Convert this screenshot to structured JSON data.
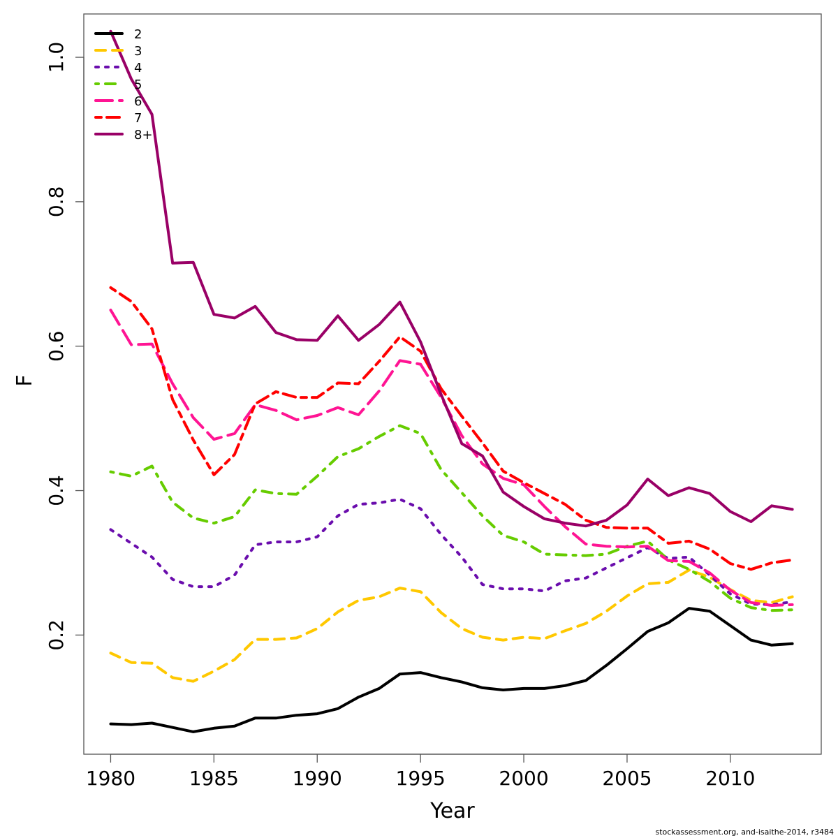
{
  "chart_data": {
    "type": "line",
    "title": "",
    "xlabel": "Year",
    "ylabel": "F",
    "xlim": [
      1978.7,
      2014.4
    ],
    "ylim": [
      0.035,
      1.06
    ],
    "x_ticks": [
      1980,
      1985,
      1990,
      1995,
      2000,
      2005,
      2010
    ],
    "x_tick_labels": [
      "1980",
      "1985",
      "1990",
      "1995",
      "2000",
      "2005",
      "2010"
    ],
    "y_ticks": [
      0.2,
      0.4,
      0.6,
      0.8,
      1.0
    ],
    "y_tick_labels": [
      "0.2",
      "0.4",
      "0.6",
      "0.8",
      "1.0"
    ],
    "grid": false,
    "legend_position": "top-left",
    "x": [
      1980,
      1981,
      1982,
      1983,
      1984,
      1985,
      1986,
      1987,
      1988,
      1989,
      1990,
      1991,
      1992,
      1993,
      1994,
      1995,
      1996,
      1997,
      1998,
      1999,
      2000,
      2001,
      2002,
      2003,
      2004,
      2005,
      2006,
      2007,
      2008,
      2009,
      2010,
      2011,
      2012,
      2013
    ],
    "series": [
      {
        "name": "2",
        "color": "#000000",
        "dash": "solid",
        "values": [
          0.077,
          0.076,
          0.078,
          0.072,
          0.066,
          0.071,
          0.074,
          0.085,
          0.085,
          0.089,
          0.091,
          0.098,
          0.114,
          0.126,
          0.146,
          0.148,
          0.141,
          0.135,
          0.127,
          0.124,
          0.126,
          0.126,
          0.13,
          0.137,
          0.158,
          0.181,
          0.205,
          0.217,
          0.237,
          0.233,
          0.213,
          0.193,
          0.186,
          0.188
        ]
      },
      {
        "name": "3",
        "color": "#FFC800",
        "dash": "dashed",
        "values": [
          0.175,
          0.162,
          0.161,
          0.141,
          0.136,
          0.15,
          0.166,
          0.194,
          0.194,
          0.196,
          0.209,
          0.232,
          0.248,
          0.253,
          0.265,
          0.26,
          0.231,
          0.209,
          0.197,
          0.193,
          0.197,
          0.195,
          0.206,
          0.216,
          0.233,
          0.254,
          0.271,
          0.273,
          0.29,
          0.28,
          0.263,
          0.248,
          0.245,
          0.253
        ]
      },
      {
        "name": "4",
        "color": "#6A0DAD",
        "dash": "dotted",
        "values": [
          0.346,
          0.327,
          0.308,
          0.277,
          0.267,
          0.267,
          0.283,
          0.325,
          0.329,
          0.329,
          0.336,
          0.365,
          0.381,
          0.383,
          0.388,
          0.375,
          0.339,
          0.308,
          0.27,
          0.264,
          0.264,
          0.261,
          0.275,
          0.279,
          0.293,
          0.307,
          0.321,
          0.306,
          0.308,
          0.283,
          0.257,
          0.243,
          0.242,
          0.246
        ]
      },
      {
        "name": "5",
        "color": "#66CC00",
        "dash": "dotdash",
        "values": [
          0.426,
          0.42,
          0.434,
          0.384,
          0.362,
          0.355,
          0.364,
          0.401,
          0.396,
          0.395,
          0.42,
          0.447,
          0.458,
          0.475,
          0.49,
          0.479,
          0.429,
          0.397,
          0.365,
          0.338,
          0.329,
          0.312,
          0.311,
          0.31,
          0.312,
          0.323,
          0.33,
          0.304,
          0.291,
          0.274,
          0.251,
          0.238,
          0.234,
          0.235
        ]
      },
      {
        "name": "6",
        "color": "#FF1493",
        "dash": "longdash",
        "values": [
          0.65,
          0.602,
          0.603,
          0.548,
          0.501,
          0.471,
          0.479,
          0.519,
          0.511,
          0.498,
          0.504,
          0.515,
          0.505,
          0.538,
          0.58,
          0.575,
          0.529,
          0.476,
          0.437,
          0.417,
          0.408,
          0.378,
          0.35,
          0.326,
          0.323,
          0.322,
          0.323,
          0.303,
          0.302,
          0.286,
          0.262,
          0.245,
          0.241,
          0.242
        ]
      },
      {
        "name": "7",
        "color": "#FF0000",
        "dash": "twodash",
        "values": [
          0.681,
          0.662,
          0.624,
          0.526,
          0.47,
          0.422,
          0.45,
          0.52,
          0.537,
          0.529,
          0.529,
          0.549,
          0.548,
          0.579,
          0.613,
          0.593,
          0.541,
          0.503,
          0.466,
          0.427,
          0.411,
          0.396,
          0.381,
          0.359,
          0.349,
          0.348,
          0.348,
          0.327,
          0.33,
          0.319,
          0.299,
          0.291,
          0.3,
          0.304
        ]
      },
      {
        "name": "8+",
        "color": "#990066",
        "dash": "solid",
        "values": [
          1.036,
          0.97,
          0.921,
          0.715,
          0.716,
          0.644,
          0.639,
          0.655,
          0.619,
          0.609,
          0.608,
          0.642,
          0.608,
          0.63,
          0.661,
          0.606,
          0.533,
          0.465,
          0.448,
          0.398,
          0.378,
          0.361,
          0.355,
          0.351,
          0.359,
          0.38,
          0.416,
          0.393,
          0.404,
          0.396,
          0.371,
          0.357,
          0.379,
          0.374
        ]
      }
    ]
  },
  "footer": "stockassessment.org, and-isaithe-2014, r3484"
}
